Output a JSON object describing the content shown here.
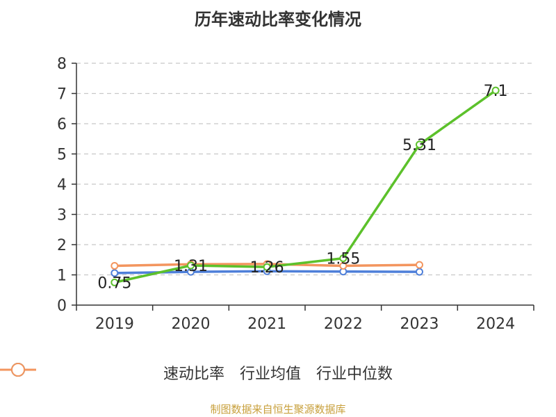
{
  "chart_data": {
    "type": "line",
    "title": "历年速动比率变化情况",
    "xlabel": "",
    "ylabel": "",
    "categories": [
      "2019",
      "2020",
      "2021",
      "2022",
      "2023",
      "2024"
    ],
    "ylim": [
      0,
      8
    ],
    "yticks": [
      0,
      1,
      2,
      3,
      4,
      5,
      6,
      7,
      8
    ],
    "grid": true,
    "legend_position": "bottom",
    "series": [
      {
        "name": "速动比率",
        "color": "#5cc12b",
        "values": [
          0.75,
          1.31,
          1.26,
          1.55,
          5.31,
          7.1
        ],
        "labels": [
          "0.75",
          "1.31",
          "1.26",
          "1.55",
          "5.31",
          "7.1"
        ]
      },
      {
        "name": "行业均值",
        "color": "#4e7fd9",
        "values": [
          1.06,
          1.1,
          1.12,
          1.11,
          1.1,
          null
        ]
      },
      {
        "name": "行业中位数",
        "color": "#f3955e",
        "values": [
          1.3,
          1.35,
          1.36,
          1.3,
          1.33,
          null
        ]
      }
    ]
  },
  "source_note": "制图数据来自恒生聚源数据库"
}
